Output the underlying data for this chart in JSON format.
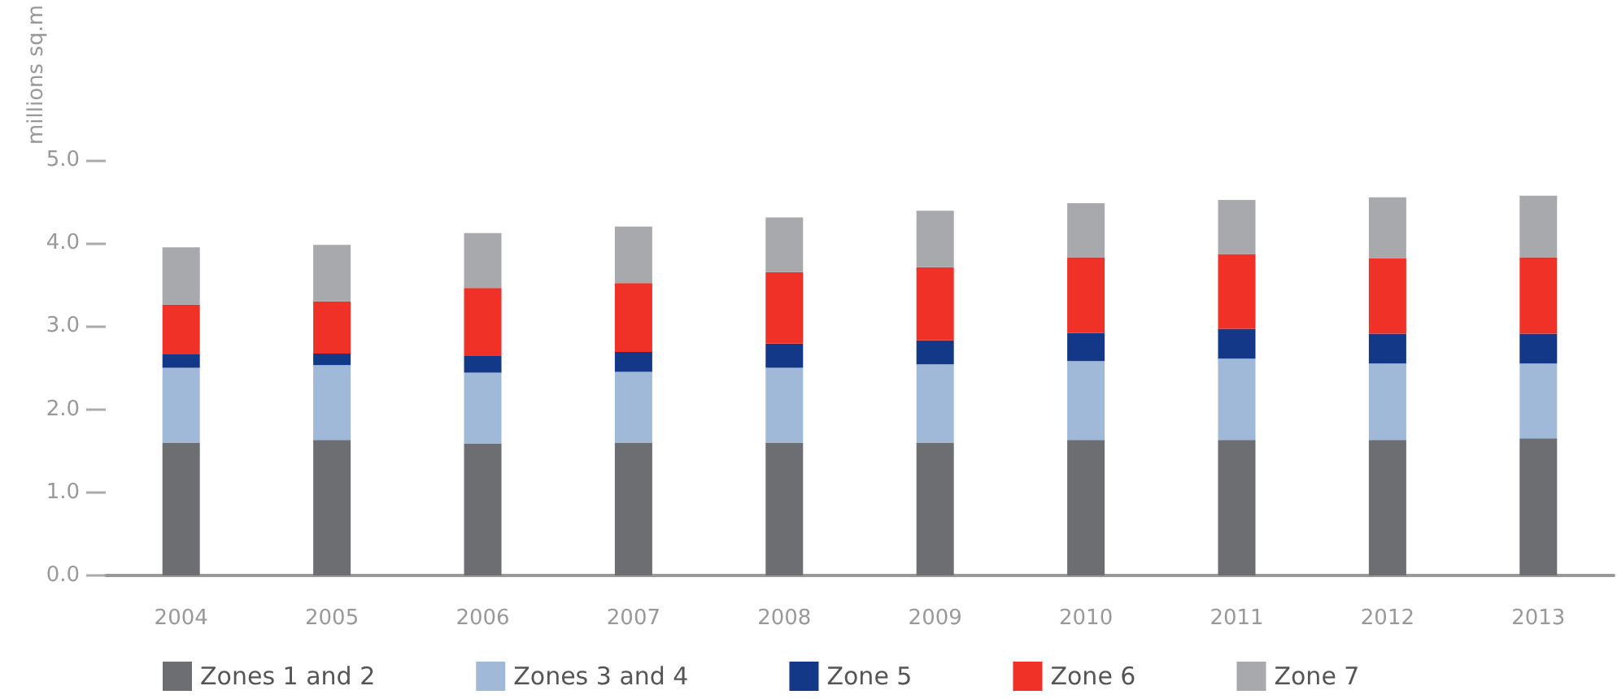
{
  "chart_data": {
    "type": "bar",
    "stacked": true,
    "ylabel": "millions sq.m",
    "categories": [
      "2004",
      "2005",
      "2006",
      "2007",
      "2008",
      "2009",
      "2010",
      "2011",
      "2012",
      "2013"
    ],
    "series": [
      {
        "name": "Zones 1 and 2",
        "color": "#6d6e72",
        "values": [
          1.6,
          1.63,
          1.59,
          1.6,
          1.6,
          1.6,
          1.63,
          1.63,
          1.63,
          1.65
        ]
      },
      {
        "name": "Zones 3 and 4",
        "color": "#a0b9d8",
        "values": [
          0.9,
          0.9,
          0.85,
          0.85,
          0.9,
          0.94,
          0.95,
          0.98,
          0.92,
          0.9
        ]
      },
      {
        "name": "Zone 5",
        "color": "#123887",
        "values": [
          0.16,
          0.14,
          0.2,
          0.24,
          0.29,
          0.29,
          0.34,
          0.36,
          0.36,
          0.36
        ]
      },
      {
        "name": "Zone 6",
        "color": "#ef3127",
        "values": [
          0.6,
          0.63,
          0.82,
          0.83,
          0.86,
          0.88,
          0.91,
          0.9,
          0.91,
          0.92
        ]
      },
      {
        "name": "Zone 7",
        "color": "#a8a9ad",
        "values": [
          0.69,
          0.68,
          0.66,
          0.68,
          0.66,
          0.68,
          0.65,
          0.65,
          0.73,
          0.74
        ]
      }
    ],
    "ylim": [
      0,
      5
    ],
    "yticks": [
      {
        "value": 0,
        "label": "0.0"
      },
      {
        "value": 1,
        "label": "1.0"
      },
      {
        "value": 2,
        "label": "2.0"
      },
      {
        "value": 3,
        "label": "3.0"
      },
      {
        "value": 4,
        "label": "4.0"
      },
      {
        "value": 5,
        "label": "5.0"
      }
    ],
    "grid": false,
    "legend": "bottom"
  }
}
